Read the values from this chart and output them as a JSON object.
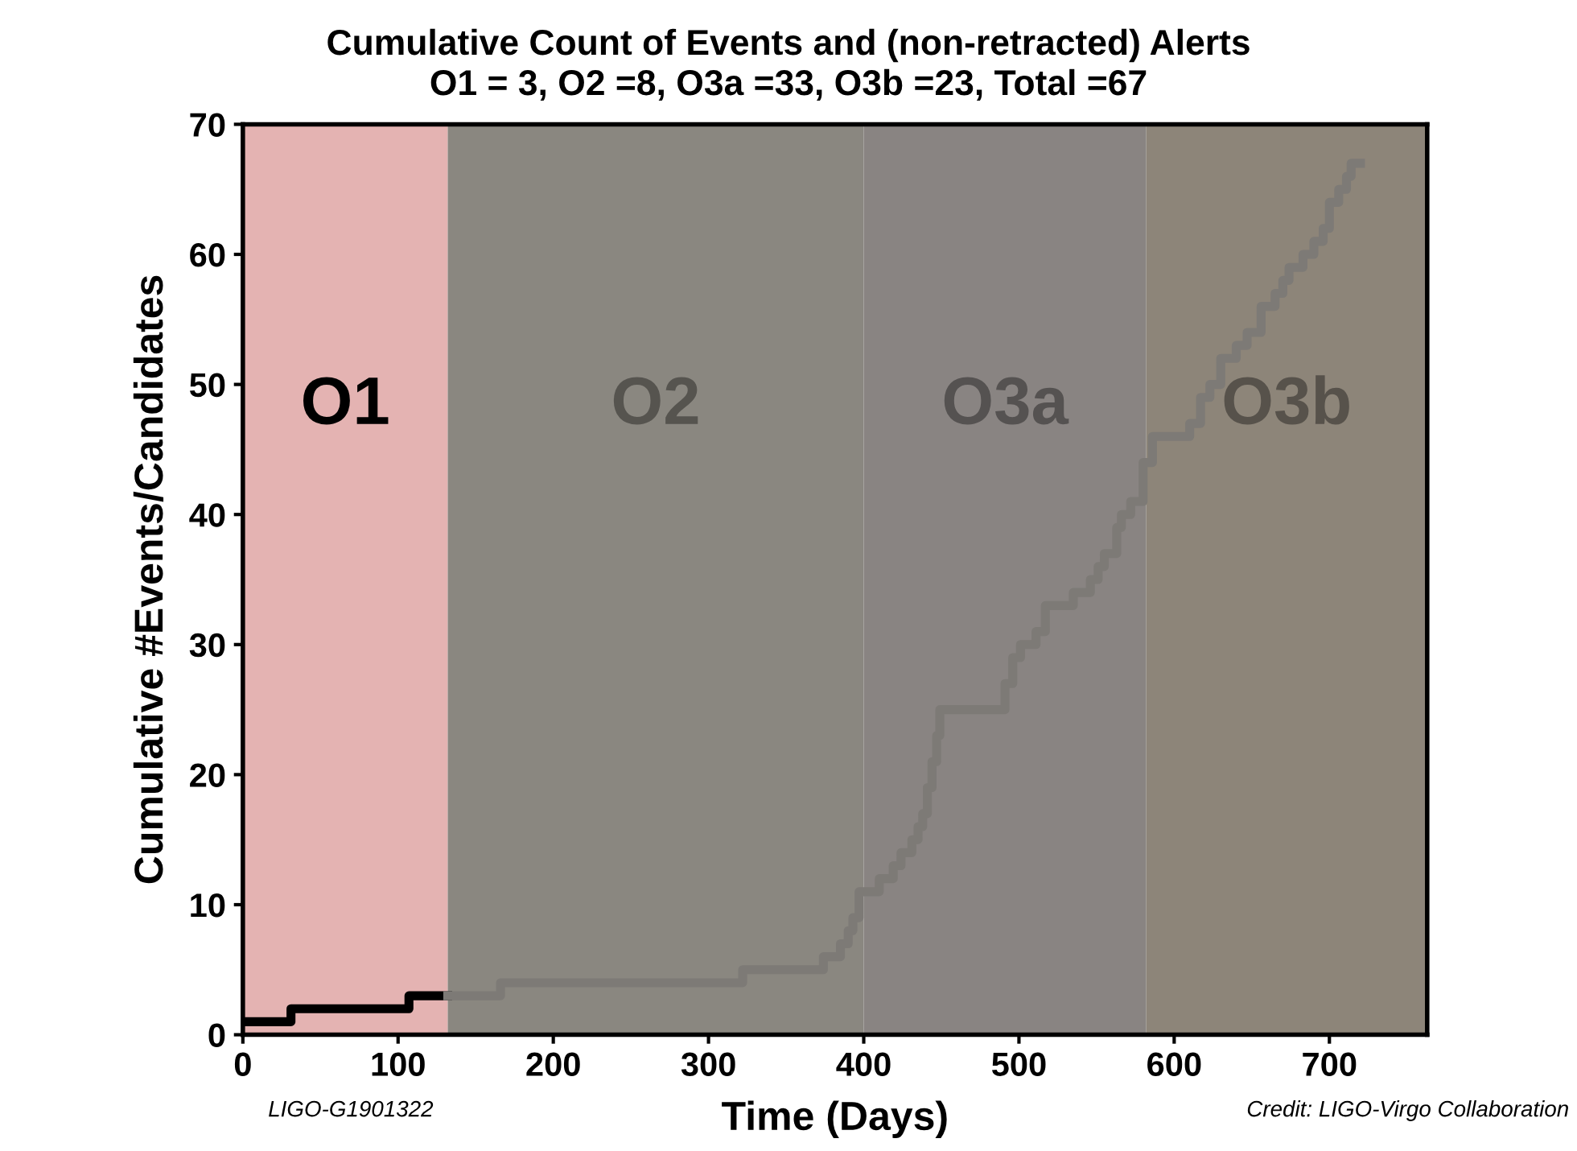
{
  "chart_data": {
    "type": "step",
    "title": "Cumulative Count of Events and (non-retracted) Alerts",
    "subtitle": "O1 = 3, O2 =8, O3a =33, O3b =23, Total =67",
    "xlabel": "Time (Days)",
    "ylabel": "Cumulative #Events/Candidates",
    "xlim": [
      0,
      763
    ],
    "xticks": [
      0,
      100,
      200,
      300,
      400,
      500,
      600,
      700
    ],
    "ylim": [
      0,
      70
    ],
    "yticks": [
      0,
      10,
      20,
      30,
      40,
      50,
      60,
      70
    ],
    "grid": false,
    "line_style": "solid",
    "marker": "none",
    "series": [
      {
        "color": "#000000",
        "x": [
          3,
          31,
          107,
          132
        ],
        "values": [
          1,
          2,
          3,
          3
        ]
      },
      {
        "color": "#7d7a76",
        "x": [
          132,
          166,
          322,
          374,
          385,
          390,
          393,
          397,
          401,
          410,
          419,
          424,
          431,
          435,
          438,
          441,
          444,
          447,
          449,
          491,
          496,
          501,
          511,
          517,
          535,
          546,
          551,
          555,
          563,
          566,
          572,
          580,
          586,
          610,
          617,
          623,
          630,
          640,
          647,
          656,
          665,
          670,
          674,
          683,
          690,
          696,
          700,
          706,
          711,
          714,
          720
        ],
        "values": [
          3,
          4,
          5,
          6,
          7,
          8,
          9,
          11,
          11,
          12,
          13,
          14,
          15,
          16,
          17,
          19,
          21,
          23,
          25,
          27,
          29,
          30,
          31,
          33,
          34,
          35,
          36,
          37,
          39,
          40,
          41,
          44,
          46,
          47,
          49,
          50,
          52,
          53,
          54,
          56,
          57,
          58,
          59,
          60,
          61,
          62,
          64,
          65,
          66,
          67,
          67
        ]
      }
    ],
    "bands": [
      {
        "axis": "x",
        "from": 0,
        "to": 132,
        "label": "O1",
        "color": "#e4b3b2"
      },
      {
        "axis": "x",
        "from": 132,
        "to": 400,
        "label": "O2",
        "color": "#8a8780"
      },
      {
        "axis": "x",
        "from": 400,
        "to": 582,
        "label": "O3a",
        "color": "#898482"
      },
      {
        "axis": "x",
        "from": 582,
        "to": 763,
        "label": "O3b",
        "color": "#8d8579"
      }
    ],
    "annotations": [
      "LIGO-G1901322",
      "Credit: LIGO-Virgo Collaboration"
    ]
  }
}
